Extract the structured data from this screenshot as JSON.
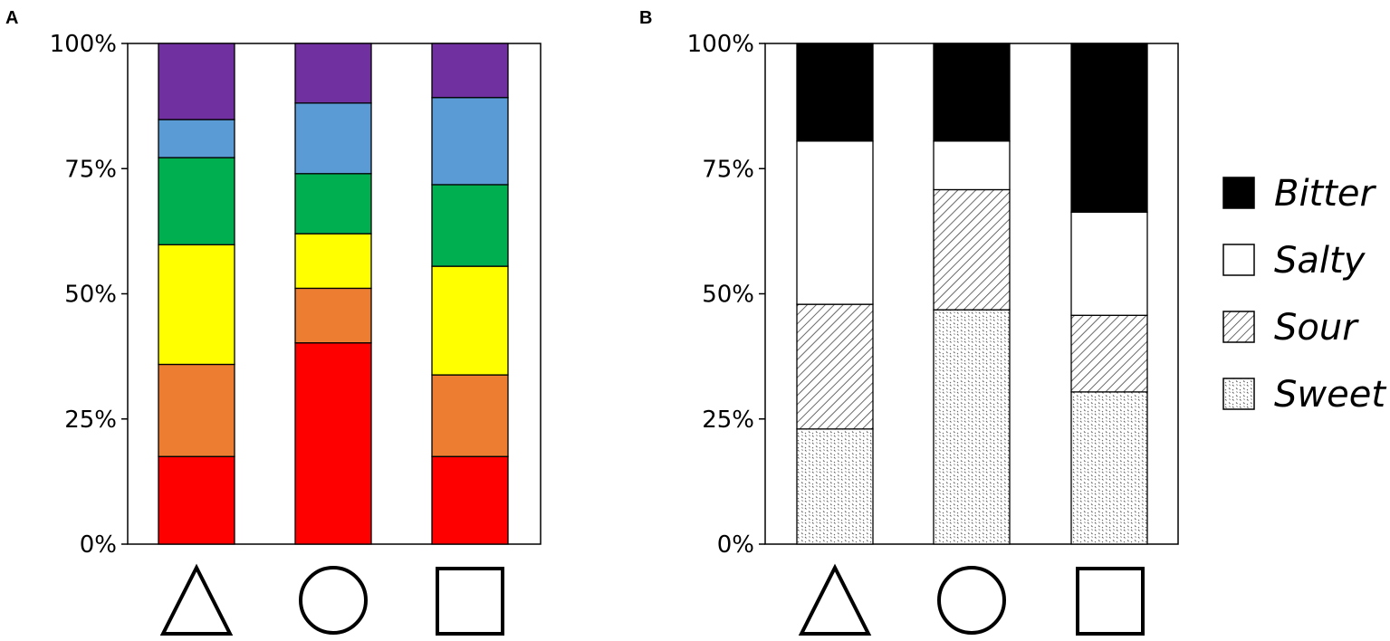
{
  "panels": [
    {
      "label": "A"
    },
    {
      "label": "B"
    }
  ],
  "category_symbols": [
    "triangle",
    "circle",
    "square"
  ],
  "colors": {
    "a": [
      "#ff0000",
      "#ed7d31",
      "#ffff00",
      "#00b050",
      "#5b9bd5",
      "#7030a0"
    ],
    "b_bitter": "#000000",
    "b_salty": "#ffffff",
    "b_outline": "#000000"
  },
  "chart_data": [
    {
      "type": "bar",
      "stacked": true,
      "categories": [
        "△",
        "○",
        "□"
      ],
      "ylim": [
        0,
        100
      ],
      "yticks": [
        "0%",
        "25%",
        "50%",
        "75%",
        "100%"
      ],
      "series": [
        {
          "values": [
            17.5,
            40.2,
            17.5
          ]
        },
        {
          "values": [
            18.4,
            10.9,
            16.3
          ]
        },
        {
          "values": [
            23.9,
            10.9,
            21.7
          ]
        },
        {
          "values": [
            17.4,
            12.0,
            16.3
          ]
        },
        {
          "values": [
            7.6,
            14.1,
            17.4
          ]
        },
        {
          "values": [
            15.2,
            11.9,
            10.8
          ]
        }
      ]
    },
    {
      "type": "bar",
      "stacked": true,
      "categories": [
        "△",
        "○",
        "□"
      ],
      "ylim": [
        0,
        100
      ],
      "yticks": [
        "0%",
        "25%",
        "50%",
        "75%",
        "100%"
      ],
      "legend_position": "right",
      "series": [
        {
          "name": "Sweet",
          "values": [
            23.0,
            46.8,
            30.4
          ],
          "pattern": "dots"
        },
        {
          "name": "Sour",
          "values": [
            24.9,
            24.0,
            15.3
          ],
          "pattern": "hatch"
        },
        {
          "name": "Salty",
          "values": [
            32.6,
            9.7,
            20.6
          ],
          "pattern": "white"
        },
        {
          "name": "Bitter",
          "values": [
            19.5,
            19.5,
            33.7
          ],
          "pattern": "black"
        }
      ],
      "legend": [
        "Bitter",
        "Salty",
        "Sour",
        "Sweet"
      ]
    }
  ]
}
